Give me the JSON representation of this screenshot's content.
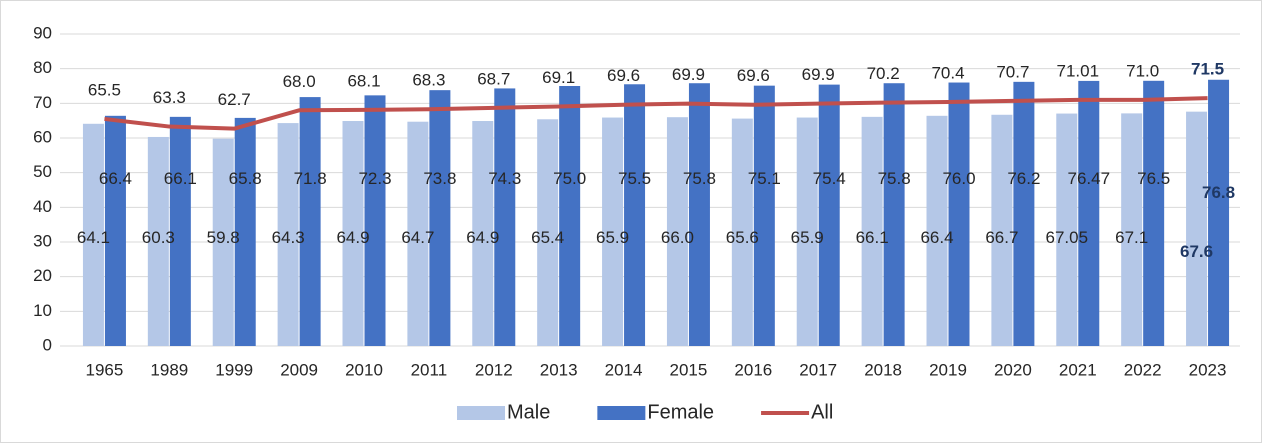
{
  "chart_data": {
    "type": "bar_line",
    "categories": [
      "1965",
      "1989",
      "1999",
      "2009",
      "2010",
      "2011",
      "2012",
      "2013",
      "2014",
      "2015",
      "2016",
      "2017",
      "2018",
      "2019",
      "2020",
      "2021",
      "2022",
      "2023"
    ],
    "series": [
      {
        "name": "Male",
        "type": "bar",
        "color": "#b4c7e7",
        "values": [
          64.1,
          60.3,
          59.8,
          64.3,
          64.9,
          64.7,
          64.9,
          65.4,
          65.9,
          66.0,
          65.6,
          65.9,
          66.1,
          66.4,
          66.7,
          67.05,
          67.1,
          67.6
        ],
        "value_labels": [
          "64.1",
          "60.3",
          "59.8",
          "64.3",
          "64.9",
          "64.7",
          "64.9",
          "65.4",
          "65.9",
          "66.0",
          "65.6",
          "65.9",
          "66.1",
          "66.4",
          "66.7",
          "67.05",
          "67.1",
          "67.6"
        ]
      },
      {
        "name": "Female",
        "type": "bar",
        "color": "#4472c4",
        "values": [
          66.4,
          66.1,
          65.8,
          71.8,
          72.3,
          73.8,
          74.3,
          75.0,
          75.5,
          75.8,
          75.1,
          75.4,
          75.8,
          76.0,
          76.2,
          76.47,
          76.5,
          76.8
        ],
        "value_labels": [
          "66.4",
          "66.1",
          "65.8",
          "71.8",
          "72.3",
          "73.8",
          "74.3",
          "75.0",
          "75.5",
          "75.8",
          "75.1",
          "75.4",
          "75.8",
          "76.0",
          "76.2",
          "76.47",
          "76.5",
          "76.8"
        ]
      },
      {
        "name": "All",
        "type": "line",
        "color": "#c0504d",
        "values": [
          65.5,
          63.3,
          62.7,
          68.0,
          68.1,
          68.3,
          68.7,
          69.1,
          69.6,
          69.9,
          69.6,
          69.9,
          70.2,
          70.4,
          70.7,
          71.01,
          71.0,
          71.5
        ],
        "value_labels": [
          "65.5",
          "63.3",
          "62.7",
          "68.0",
          "68.1",
          "68.3",
          "68.7",
          "69.1",
          "69.6",
          "69.9",
          "69.6",
          "69.9",
          "70.2",
          "70.4",
          "70.7",
          "71.01",
          "71.0",
          "71.5"
        ]
      }
    ],
    "ylim": [
      0,
      90
    ],
    "yticks": [
      0,
      10,
      20,
      30,
      40,
      50,
      60,
      70,
      80,
      90
    ],
    "grid": true,
    "legend": "bottom",
    "label_highlight_color": "#1f3864"
  }
}
